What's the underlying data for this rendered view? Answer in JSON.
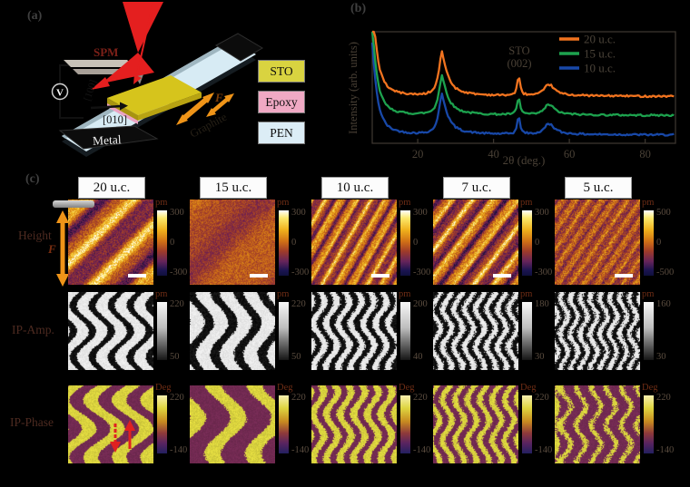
{
  "colors": {
    "background": "#000000",
    "scale_bar": "#ffffff",
    "strain_arrow": "#ef9418",
    "laser_red": "#e41f1f",
    "phase_arrow_red": "#e02020"
  },
  "panel_a": {
    "label": "(a)",
    "probe_label": "SPM",
    "voltage_symbol": "V",
    "axis_vertical": "[100]",
    "axis_horizontal": "[010]",
    "metal_label": "Metal",
    "substrate_diagonal_label": "Graphite",
    "force_label": "F",
    "legend": [
      {
        "label": "STO",
        "color": "#d9d340"
      },
      {
        "label": "Epoxy",
        "color": "#f0a9c4"
      },
      {
        "label": "PEN",
        "color": "#dcedf6"
      }
    ]
  },
  "panel_b": {
    "label": "(b)",
    "chart_data": {
      "type": "line",
      "xlabel": "2θ (deg.)",
      "ylabel": "Intensity (arb. units)",
      "xlim": [
        8,
        88
      ],
      "xticks": [
        20,
        40,
        60,
        80
      ],
      "grid": false,
      "legend_position": "top-right",
      "annotation_line1": "STO",
      "annotation_line2": "(002)",
      "annotation_x_deg": 46.5,
      "peaks": {
        "pen_substrate_deg": 26.4,
        "sto_002_deg": 46.6,
        "broad_bump_deg": 54.3
      },
      "shape_x": [
        8,
        8.5,
        9,
        9.5,
        10,
        11,
        12,
        13,
        14.5,
        16,
        18,
        20,
        22,
        23.5,
        24.5,
        25.3,
        25.9,
        26.4,
        27,
        27.8,
        28.8,
        30,
        31.5,
        33.5,
        36,
        39,
        42,
        44,
        45.2,
        45.9,
        46.3,
        46.6,
        46.9,
        47.3,
        48,
        49,
        50.5,
        52,
        53.2,
        54.3,
        55.3,
        56.5,
        58,
        60,
        62.5,
        65,
        68,
        71,
        75,
        80,
        84,
        88
      ],
      "shape_y": [
        2.2,
        1.6,
        1.15,
        0.85,
        0.62,
        0.38,
        0.25,
        0.18,
        0.13,
        0.1,
        0.08,
        0.075,
        0.09,
        0.13,
        0.22,
        0.45,
        0.78,
        1.0,
        0.78,
        0.52,
        0.33,
        0.21,
        0.14,
        0.1,
        0.075,
        0.06,
        0.055,
        0.06,
        0.08,
        0.14,
        0.33,
        0.48,
        0.36,
        0.16,
        0.09,
        0.07,
        0.065,
        0.09,
        0.16,
        0.3,
        0.26,
        0.15,
        0.09,
        0.065,
        0.05,
        0.045,
        0.04,
        0.038,
        0.035,
        0.03,
        0.03,
        0.03
      ],
      "series": [
        {
          "name": "20 u.c.",
          "color": "#f1731f",
          "baseline_offset": 0.41,
          "amplitude": 0.41
        },
        {
          "name": "15 u.c.",
          "color": "#1da24e",
          "baseline_offset": 0.24,
          "amplitude": 0.37
        },
        {
          "name": "10 u.c.",
          "color": "#1848a8",
          "baseline_offset": 0.065,
          "amplitude": 0.38
        }
      ]
    }
  },
  "panel_c": {
    "label": "(c)",
    "columns": [
      "20 u.c.",
      "15 u.c.",
      "10 u.c.",
      "7 u.c.",
      "5 u.c."
    ],
    "force_label": "F",
    "rows": [
      {
        "label": "Height",
        "colorbars": [
          {
            "unit": "pm",
            "top": "300",
            "mid": "0",
            "bottom": "-300"
          },
          {
            "unit": "pm",
            "top": "300",
            "mid": "0",
            "bottom": "-300"
          },
          {
            "unit": "pm",
            "top": "300",
            "mid": "0",
            "bottom": "-300"
          },
          {
            "unit": "pm",
            "top": "300",
            "mid": "0",
            "bottom": "-300"
          },
          {
            "unit": "pm",
            "top": "500",
            "mid": "0",
            "bottom": "-500"
          }
        ]
      },
      {
        "label": "IP-Amp.",
        "colorbars": [
          {
            "unit": "pm",
            "top": "220",
            "bottom": "50"
          },
          {
            "unit": "pm",
            "top": "220",
            "bottom": "50"
          },
          {
            "unit": "pm",
            "top": "200",
            "bottom": "40"
          },
          {
            "unit": "pm",
            "top": "180",
            "bottom": "30"
          },
          {
            "unit": "pm",
            "top": "160",
            "bottom": "30"
          }
        ]
      },
      {
        "label": "IP-Phase",
        "colorbars": [
          {
            "unit": "Deg",
            "top": "220",
            "bottom": "-140"
          },
          {
            "unit": "Deg",
            "top": "220",
            "bottom": "-140"
          },
          {
            "unit": "Deg",
            "top": "220",
            "bottom": "-140"
          },
          {
            "unit": "Deg",
            "top": "220",
            "bottom": "-140"
          },
          {
            "unit": "Deg",
            "top": "220",
            "bottom": "-140"
          }
        ]
      }
    ]
  }
}
